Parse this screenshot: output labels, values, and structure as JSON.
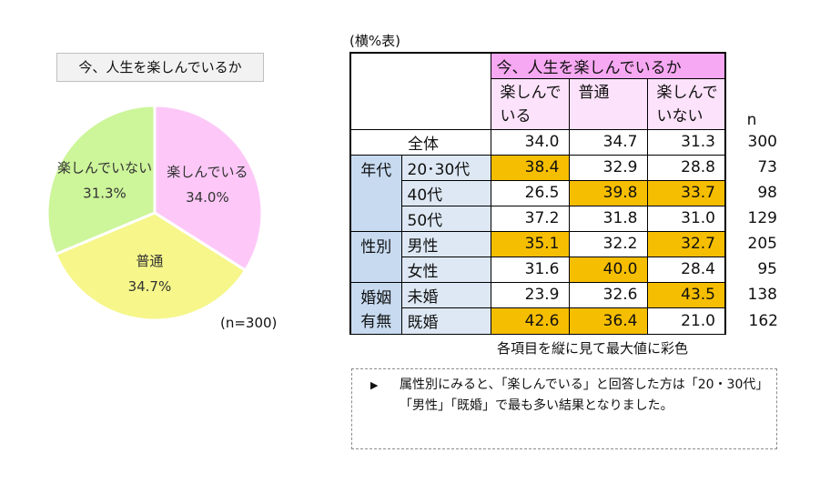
{
  "pie": {
    "title": "今、人生を楽しんでいるか",
    "n_label": "(n=300)"
  },
  "chart_data": [
    {
      "type": "pie",
      "title": "今、人生を楽しんでいるか",
      "labels": [
        "楽しんでいる",
        "普通",
        "楽しんでいない"
      ],
      "values": [
        34.0,
        34.7,
        31.3
      ],
      "value_labels": [
        "34.0%",
        "34.7%",
        "31.3%"
      ],
      "colors": [
        "#fdc8f8",
        "#f6f68a",
        "#cdf59a"
      ],
      "n": "(n=300)"
    },
    {
      "type": "table",
      "caption": "(横%表)",
      "header_group": "今、人生を楽しんでいるか",
      "columns": [
        "楽しんで\nいる",
        "普通",
        "楽しんで\nいない"
      ],
      "n_header": "n",
      "groups": [
        {
          "label": "",
          "rows": [
            {
              "label": "全体",
              "values": [
                "34.0",
                "34.7",
                "31.3"
              ],
              "n": "300",
              "highlight": [
                false,
                false,
                false
              ]
            }
          ]
        },
        {
          "label": "年代",
          "rows": [
            {
              "label": "20･30代",
              "values": [
                "38.4",
                "32.9",
                "28.8"
              ],
              "n": "73",
              "highlight": [
                true,
                false,
                false
              ]
            },
            {
              "label": "40代",
              "values": [
                "26.5",
                "39.8",
                "33.7"
              ],
              "n": "98",
              "highlight": [
                false,
                true,
                true
              ]
            },
            {
              "label": "50代",
              "values": [
                "37.2",
                "31.8",
                "31.0"
              ],
              "n": "129",
              "highlight": [
                false,
                false,
                false
              ]
            }
          ]
        },
        {
          "label": "性別",
          "rows": [
            {
              "label": "男性",
              "values": [
                "35.1",
                "32.2",
                "32.7"
              ],
              "n": "205",
              "highlight": [
                true,
                false,
                true
              ]
            },
            {
              "label": "女性",
              "values": [
                "31.6",
                "40.0",
                "28.4"
              ],
              "n": "95",
              "highlight": [
                false,
                true,
                false
              ]
            }
          ]
        },
        {
          "label": "婚姻\n有無",
          "rows": [
            {
              "label": "未婚",
              "values": [
                "23.9",
                "32.6",
                "43.5"
              ],
              "n": "138",
              "highlight": [
                false,
                false,
                true
              ]
            },
            {
              "label": "既婚",
              "values": [
                "42.6",
                "36.4",
                "21.0"
              ],
              "n": "162",
              "highlight": [
                true,
                true,
                false
              ]
            }
          ]
        }
      ],
      "highlight_color": "#f6be00",
      "note": "各項目を縦に見て最大値に彩色"
    }
  ],
  "comment": {
    "arrow": "▶",
    "text": "属性別にみると、「楽しんでいる」と回答した方は「20・30代」「男性」「既婚」で最も多い結果となりました。"
  }
}
